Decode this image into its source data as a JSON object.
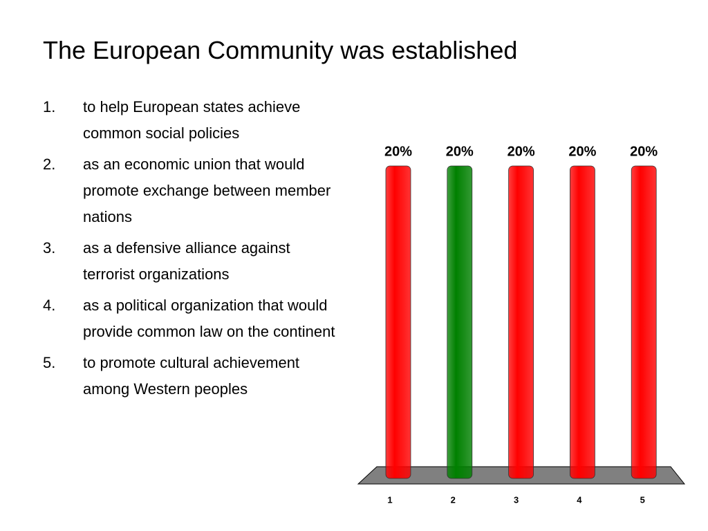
{
  "header": {
    "title": "The European Community was established"
  },
  "list": [
    {
      "number": "1.",
      "text": "to help European states achieve common social policies"
    },
    {
      "number": "2.",
      "text": "as an economic union that would promote exchange between member nations"
    },
    {
      "number": "3.",
      "text": "as a defensive alliance against terrorist organizations"
    },
    {
      "number": "4.",
      "text": "as a political organization that would provide common law on the continent"
    },
    {
      "number": "5.",
      "text": "to promote cultural achievement among Western peoples"
    }
  ],
  "chart_data": {
    "type": "bar",
    "categories": [
      "1",
      "2",
      "3",
      "4",
      "5"
    ],
    "values": [
      20,
      20,
      20,
      20,
      20
    ],
    "value_labels": [
      "20%",
      "20%",
      "20%",
      "20%",
      "20%"
    ],
    "colors": [
      "#ff0000",
      "#008000",
      "#ff0000",
      "#ff0000",
      "#ff0000"
    ]
  }
}
